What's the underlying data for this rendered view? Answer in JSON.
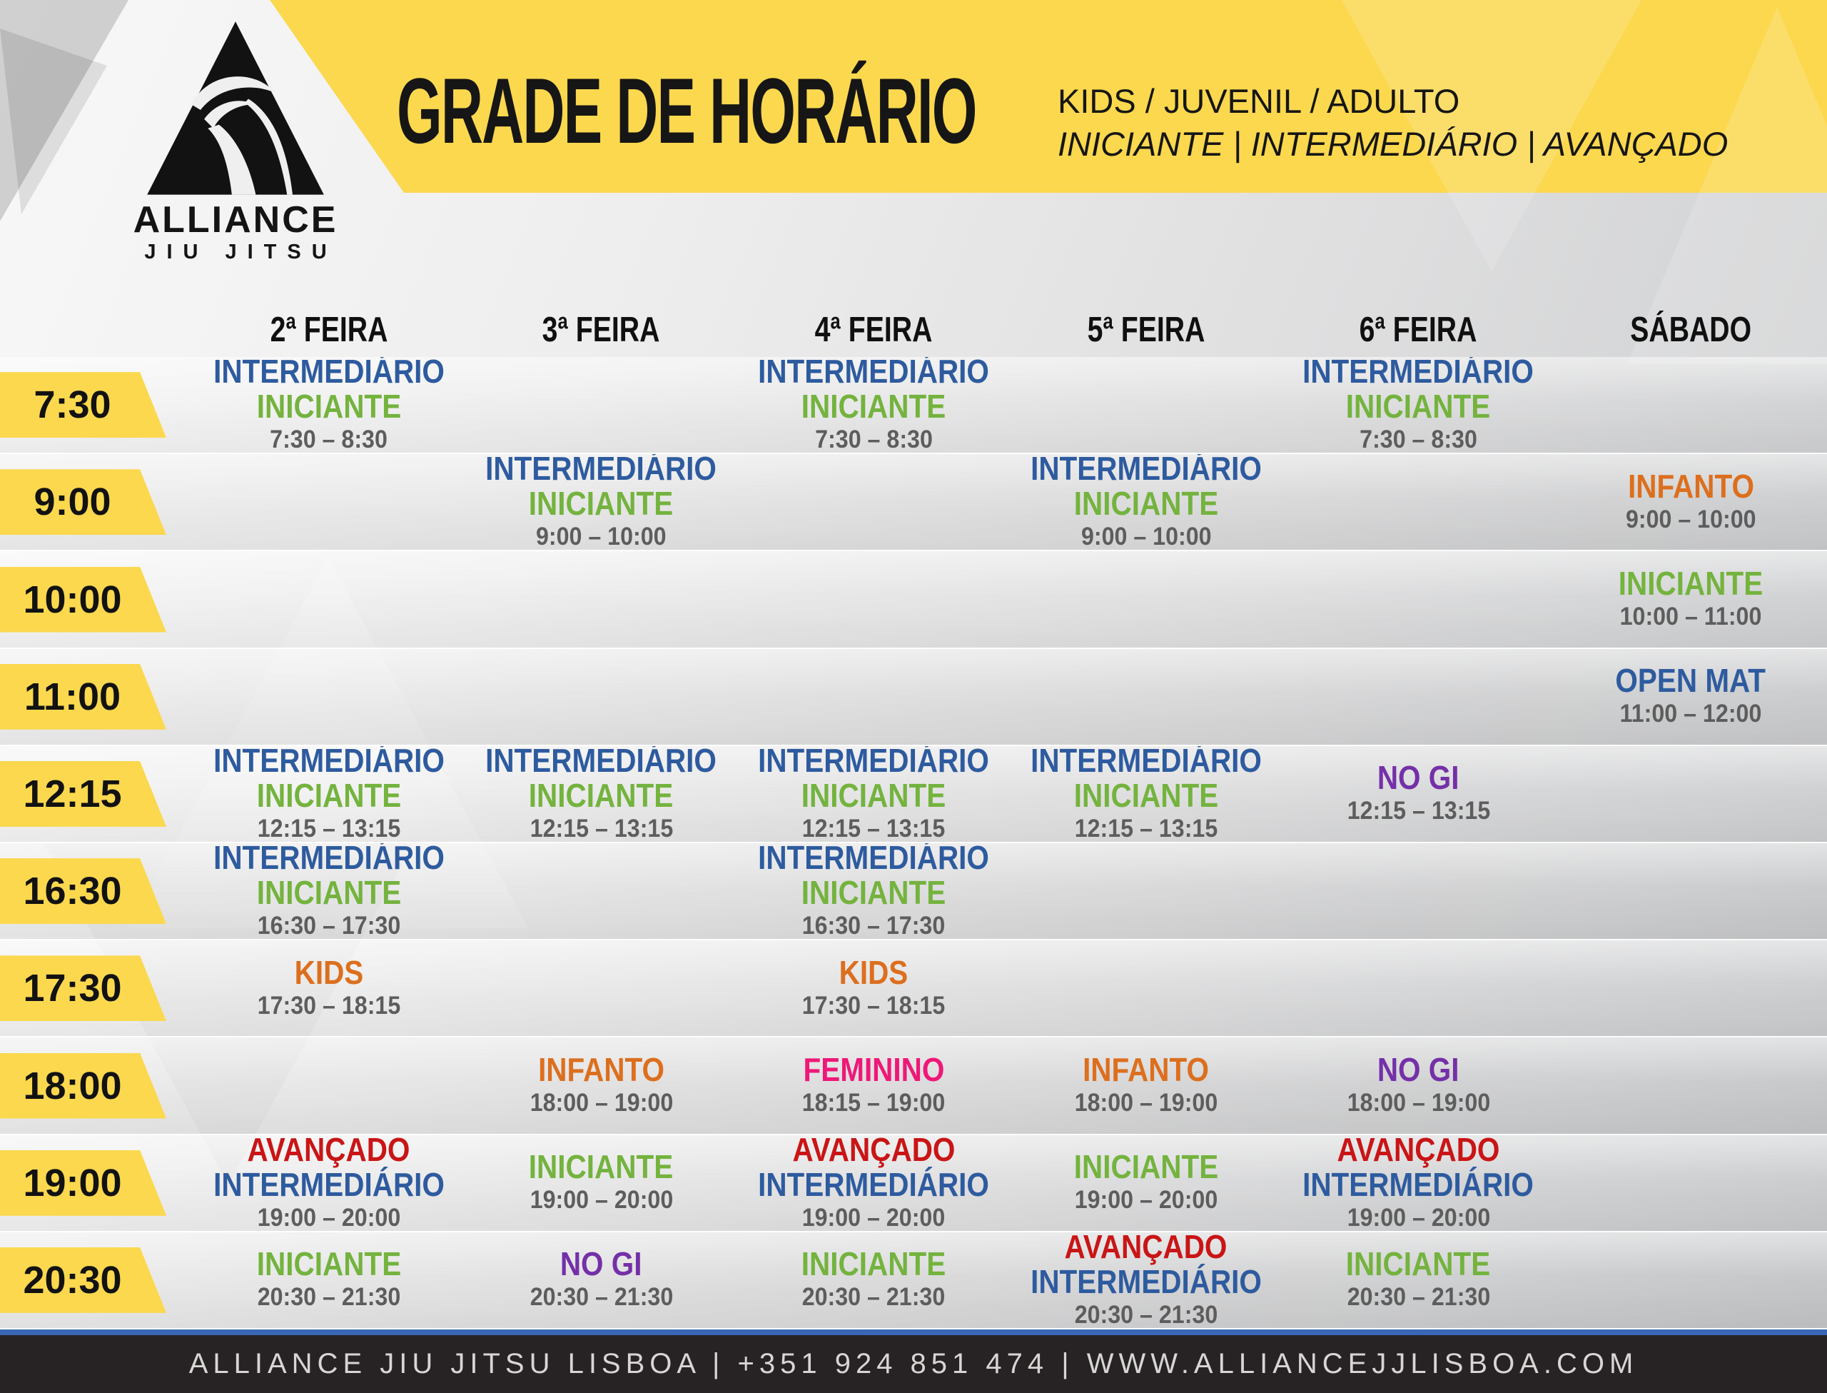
{
  "header": {
    "title": "GRADE DE HORÁRIO",
    "subtitle_line1": "KIDS / JUVENIL / ADULTO",
    "subtitle_line2": "INICIANTE | INTERMEDIÁRIO | AVANÇADO",
    "logo_name": "ALLIANCE",
    "logo_sub": "JIU JITSU"
  },
  "colors": {
    "blue": "#2e5b9f",
    "green": "#74b33e",
    "orange": "#dc6f1e",
    "red": "#c91516",
    "pink": "#ee1878",
    "purple": "#7430a8",
    "yellow": "#fbd84e",
    "time_gray": "#5d5d5d",
    "footer_bg": "#272324",
    "footer_rule_blue": "#3a67b6"
  },
  "days": [
    "2ª FEIRA",
    "3ª FEIRA",
    "4ª FEIRA",
    "5ª FEIRA",
    "6ª FEIRA",
    "SÁBADO"
  ],
  "rows": [
    {
      "time": "7:30",
      "cells": [
        {
          "classes": [
            {
              "label": "INTERMEDIÁRIO",
              "color": "blue"
            },
            {
              "label": "INICIANTE",
              "color": "green"
            }
          ],
          "time": "7:30 – 8:30"
        },
        null,
        {
          "classes": [
            {
              "label": "INTERMEDIÁRIO",
              "color": "blue"
            },
            {
              "label": "INICIANTE",
              "color": "green"
            }
          ],
          "time": "7:30 – 8:30"
        },
        null,
        {
          "classes": [
            {
              "label": "INTERMEDIÁRIO",
              "color": "blue"
            },
            {
              "label": "INICIANTE",
              "color": "green"
            }
          ],
          "time": "7:30 – 8:30"
        },
        null
      ]
    },
    {
      "time": "9:00",
      "cells": [
        null,
        {
          "classes": [
            {
              "label": "INTERMEDIÁRIO",
              "color": "blue"
            },
            {
              "label": "INICIANTE",
              "color": "green"
            }
          ],
          "time": "9:00 – 10:00"
        },
        null,
        {
          "classes": [
            {
              "label": "INTERMEDIÁRIO",
              "color": "blue"
            },
            {
              "label": "INICIANTE",
              "color": "green"
            }
          ],
          "time": "9:00 – 10:00"
        },
        null,
        {
          "classes": [
            {
              "label": "INFANTO",
              "color": "orange"
            }
          ],
          "time": "9:00 – 10:00"
        }
      ]
    },
    {
      "time": "10:00",
      "cells": [
        null,
        null,
        null,
        null,
        null,
        {
          "classes": [
            {
              "label": "INICIANTE",
              "color": "green"
            }
          ],
          "time": "10:00 – 11:00"
        }
      ]
    },
    {
      "time": "11:00",
      "cells": [
        null,
        null,
        null,
        null,
        null,
        {
          "classes": [
            {
              "label": "OPEN MAT",
              "color": "blue"
            }
          ],
          "time": "11:00 – 12:00"
        }
      ]
    },
    {
      "time": "12:15",
      "cells": [
        {
          "classes": [
            {
              "label": "INTERMEDIÁRIO",
              "color": "blue"
            },
            {
              "label": "INICIANTE",
              "color": "green"
            }
          ],
          "time": "12:15 – 13:15"
        },
        {
          "classes": [
            {
              "label": "INTERMEDIÁRIO",
              "color": "blue"
            },
            {
              "label": "INICIANTE",
              "color": "green"
            }
          ],
          "time": "12:15 – 13:15"
        },
        {
          "classes": [
            {
              "label": "INTERMEDIÁRIO",
              "color": "blue"
            },
            {
              "label": "INICIANTE",
              "color": "green"
            }
          ],
          "time": "12:15 – 13:15"
        },
        {
          "classes": [
            {
              "label": "INTERMEDIÁRIO",
              "color": "blue"
            },
            {
              "label": "INICIANTE",
              "color": "green"
            }
          ],
          "time": "12:15 – 13:15"
        },
        {
          "classes": [
            {
              "label": "NO GI",
              "color": "purple"
            }
          ],
          "time": "12:15 – 13:15"
        },
        null
      ]
    },
    {
      "time": "16:30",
      "cells": [
        {
          "classes": [
            {
              "label": "INTERMEDIÁRIO",
              "color": "blue"
            },
            {
              "label": "INICIANTE",
              "color": "green"
            }
          ],
          "time": "16:30 – 17:30"
        },
        null,
        {
          "classes": [
            {
              "label": "INTERMEDIÁRIO",
              "color": "blue"
            },
            {
              "label": "INICIANTE",
              "color": "green"
            }
          ],
          "time": "16:30 – 17:30"
        },
        null,
        null,
        null
      ]
    },
    {
      "time": "17:30",
      "cells": [
        {
          "classes": [
            {
              "label": "KIDS",
              "color": "orange"
            }
          ],
          "time": "17:30 – 18:15"
        },
        null,
        {
          "classes": [
            {
              "label": "KIDS",
              "color": "orange"
            }
          ],
          "time": "17:30 – 18:15"
        },
        null,
        null,
        null
      ]
    },
    {
      "time": "18:00",
      "cells": [
        null,
        {
          "classes": [
            {
              "label": "INFANTO",
              "color": "orange"
            }
          ],
          "time": "18:00 – 19:00"
        },
        {
          "classes": [
            {
              "label": "FEMININO",
              "color": "pink"
            }
          ],
          "time": "18:15 – 19:00"
        },
        {
          "classes": [
            {
              "label": "INFANTO",
              "color": "orange"
            }
          ],
          "time": "18:00 – 19:00"
        },
        {
          "classes": [
            {
              "label": "NO GI",
              "color": "purple"
            }
          ],
          "time": "18:00 – 19:00"
        },
        null
      ]
    },
    {
      "time": "19:00",
      "cells": [
        {
          "classes": [
            {
              "label": "AVANÇADO",
              "color": "red"
            },
            {
              "label": "INTERMEDIÁRIO",
              "color": "blue"
            }
          ],
          "time": "19:00 – 20:00"
        },
        {
          "classes": [
            {
              "label": "INICIANTE",
              "color": "green"
            }
          ],
          "time": "19:00 – 20:00"
        },
        {
          "classes": [
            {
              "label": "AVANÇADO",
              "color": "red"
            },
            {
              "label": "INTERMEDIÁRIO",
              "color": "blue"
            }
          ],
          "time": "19:00 – 20:00"
        },
        {
          "classes": [
            {
              "label": "INICIANTE",
              "color": "green"
            }
          ],
          "time": "19:00 – 20:00"
        },
        {
          "classes": [
            {
              "label": "AVANÇADO",
              "color": "red"
            },
            {
              "label": "INTERMEDIÁRIO",
              "color": "blue"
            }
          ],
          "time": "19:00 – 20:00"
        },
        null
      ]
    },
    {
      "time": "20:30",
      "cells": [
        {
          "classes": [
            {
              "label": "INICIANTE",
              "color": "green"
            }
          ],
          "time": "20:30 – 21:30"
        },
        {
          "classes": [
            {
              "label": "NO GI",
              "color": "purple"
            }
          ],
          "time": "20:30 – 21:30"
        },
        {
          "classes": [
            {
              "label": "INICIANTE",
              "color": "green"
            }
          ],
          "time": "20:30 – 21:30"
        },
        {
          "classes": [
            {
              "label": "AVANÇADO",
              "color": "red"
            },
            {
              "label": "INTERMEDIÁRIO",
              "color": "blue"
            }
          ],
          "time": "20:30 – 21:30"
        },
        {
          "classes": [
            {
              "label": "INICIANTE",
              "color": "green"
            }
          ],
          "time": "20:30 – 21:30"
        },
        null
      ]
    }
  ],
  "footer": {
    "text": "ALLIANCE JIU JITSU LISBOA | +351 924 851 474 | WWW.ALLIANCEJJLISBOA.COM"
  }
}
